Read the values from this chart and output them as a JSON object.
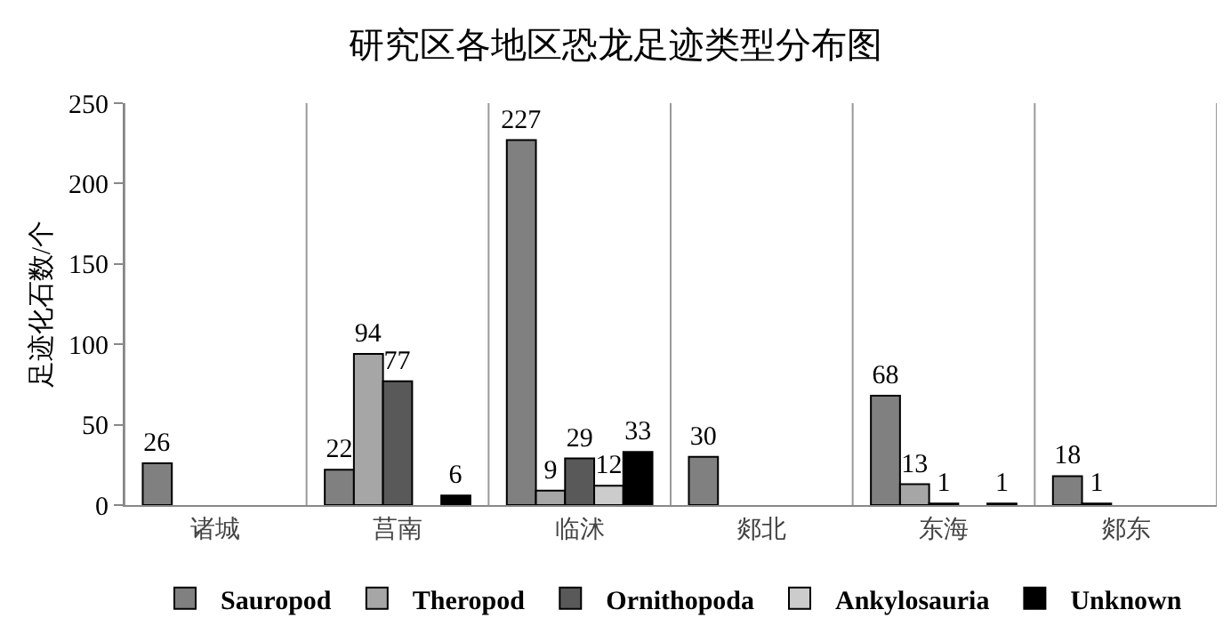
{
  "chart_data": {
    "type": "bar",
    "title": "研究区各地区恐龙足迹类型分布图",
    "ylabel": "足迹化石数/个",
    "categories": [
      "诸城",
      "莒南",
      "临沭",
      "郯北",
      "东海",
      "郯东"
    ],
    "series": [
      {
        "name": "Sauropod",
        "color": "#808080",
        "values": [
          26,
          22,
          227,
          30,
          68,
          18
        ]
      },
      {
        "name": "Theropod",
        "color": "#a6a6a6",
        "values": [
          null,
          94,
          9,
          null,
          13,
          1
        ]
      },
      {
        "name": "Ornithopoda",
        "color": "#595959",
        "values": [
          null,
          77,
          29,
          null,
          1,
          null
        ]
      },
      {
        "name": "Ankylosauria",
        "color": "#cccccc",
        "values": [
          null,
          null,
          12,
          null,
          null,
          null
        ]
      },
      {
        "name": "Unknown",
        "color": "#000000",
        "values": [
          null,
          6,
          33,
          null,
          1,
          null
        ]
      }
    ],
    "ylim": [
      0,
      250
    ],
    "yticks": [
      0,
      50,
      100,
      150,
      200,
      250
    ],
    "grid": "x",
    "legend": "bottom",
    "data_labels": true
  }
}
